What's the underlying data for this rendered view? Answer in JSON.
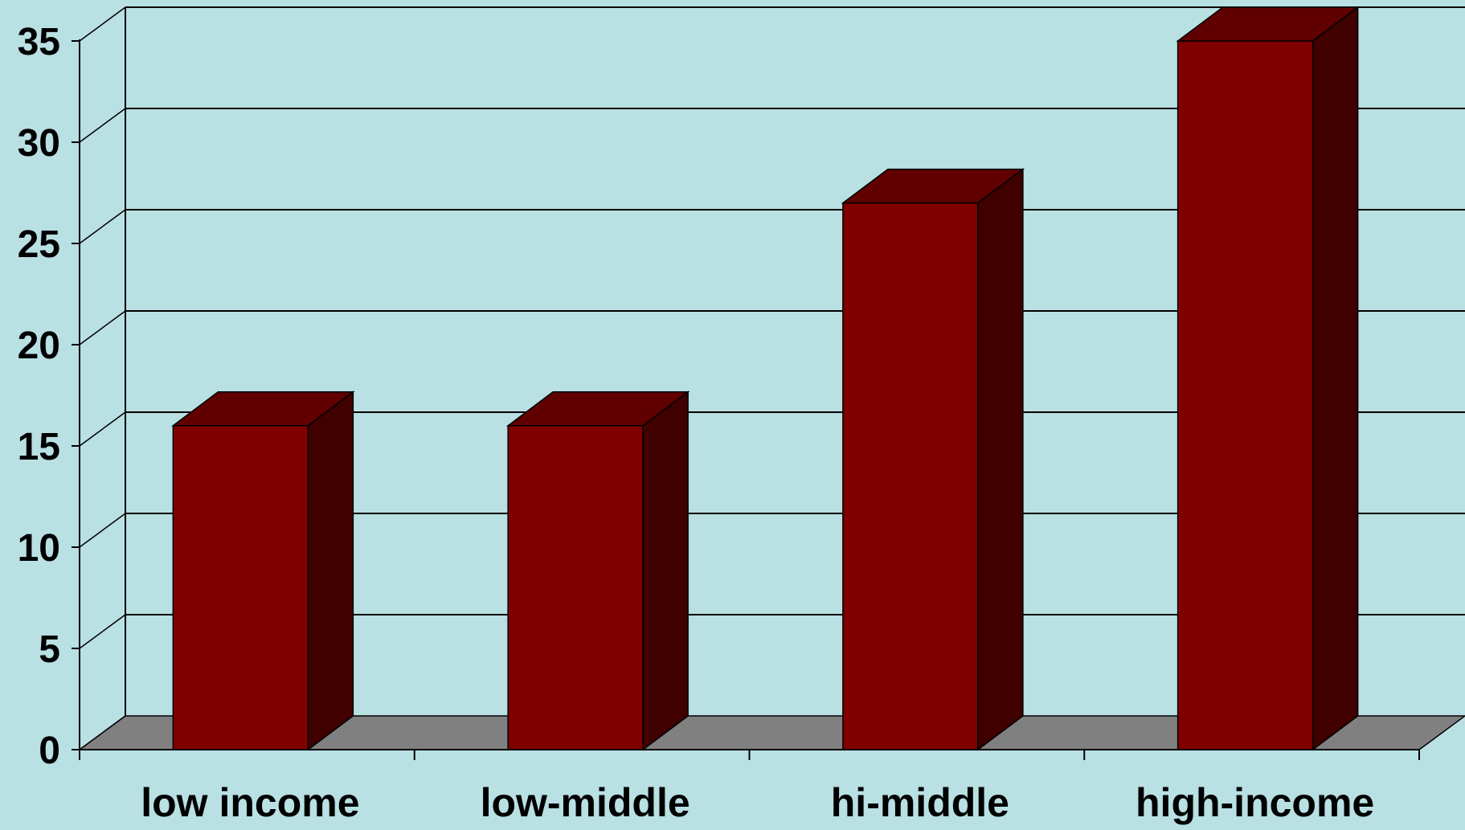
{
  "chart_data": {
    "type": "bar",
    "style": "3d-column",
    "categories": [
      "low income",
      "low-middle",
      "hi-middle",
      "high-income"
    ],
    "series": [
      {
        "values": [
          16,
          16,
          27,
          35
        ]
      }
    ],
    "ylim": [
      0,
      35
    ],
    "yticks": [
      "0",
      "5",
      "10",
      "15",
      "20",
      "25",
      "30",
      "35"
    ],
    "grid": true,
    "legend": "none",
    "colors": {
      "background": "#b9e0e3",
      "bar_front": "#800000",
      "bar_top": "#600000",
      "bar_side": "#400000",
      "floor": "#808080",
      "axis": "#000000"
    }
  }
}
